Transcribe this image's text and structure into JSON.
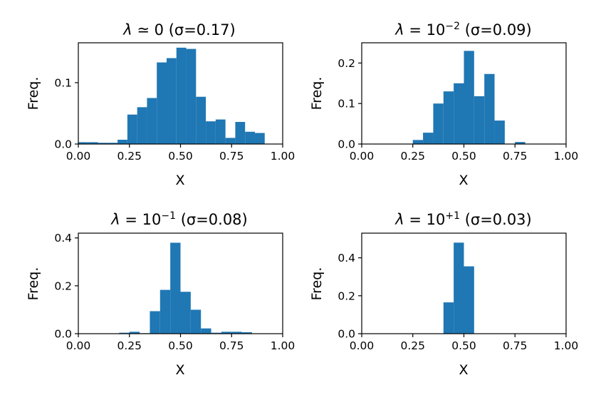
{
  "colors": {
    "bar": "#1f77b4"
  },
  "chart_data": [
    {
      "type": "bar",
      "title_parts": {
        "lambda": "λ",
        "relation": "≃ 0",
        "sigma": "(σ=0.17)"
      },
      "xlabel": "X",
      "ylabel": "Freq.",
      "xlim": [
        0,
        1
      ],
      "ylim": [
        0,
        0.165
      ],
      "xticks": [
        "0.00",
        "0.25",
        "0.50",
        "0.75",
        "1.00"
      ],
      "xtick_values": [
        0,
        0.25,
        0.5,
        0.75,
        1.0
      ],
      "yticks": [
        "0.0",
        "0.1"
      ],
      "ytick_values": [
        0,
        0.1
      ],
      "bin_edges": [
        0.0,
        0.048,
        0.096,
        0.144,
        0.192,
        0.24,
        0.288,
        0.336,
        0.384,
        0.432,
        0.48,
        0.528,
        0.576,
        0.624,
        0.672,
        0.72,
        0.768,
        0.816,
        0.864,
        0.912,
        0.96
      ],
      "values": [
        0.003,
        0.003,
        0.002,
        0.002,
        0.007,
        0.048,
        0.06,
        0.075,
        0.133,
        0.14,
        0.157,
        0.155,
        0.077,
        0.037,
        0.04,
        0.01,
        0.036,
        0.02,
        0.018,
        0.0
      ]
    },
    {
      "type": "bar",
      "title_parts": {
        "lambda": "λ",
        "relation": "= 10",
        "exponent": "−2",
        "sigma": "(σ=0.09)"
      },
      "xlabel": "X",
      "ylabel": "Freq.",
      "xlim": [
        0,
        1
      ],
      "ylim": [
        0,
        0.25
      ],
      "xticks": [
        "0.00",
        "0.25",
        "0.50",
        "0.75",
        "1.00"
      ],
      "xtick_values": [
        0,
        0.25,
        0.5,
        0.75,
        1.0
      ],
      "yticks": [
        "0.0",
        "0.1",
        "0.2"
      ],
      "ytick_values": [
        0,
        0.1,
        0.2
      ],
      "bin_edges": [
        0.25,
        0.3,
        0.35,
        0.4,
        0.45,
        0.5,
        0.55,
        0.6,
        0.65,
        0.7,
        0.75,
        0.8
      ],
      "values": [
        0.01,
        0.028,
        0.1,
        0.13,
        0.15,
        0.23,
        0.118,
        0.173,
        0.058,
        0.0,
        0.005
      ]
    },
    {
      "type": "bar",
      "title_parts": {
        "lambda": "λ",
        "relation": "= 10",
        "exponent": "−1",
        "sigma": "(σ=0.08)"
      },
      "xlabel": "X",
      "ylabel": "Freq.",
      "xlim": [
        0,
        1
      ],
      "ylim": [
        0,
        0.42
      ],
      "xticks": [
        "0.00",
        "0.25",
        "0.50",
        "0.75",
        "1.00"
      ],
      "xtick_values": [
        0,
        0.25,
        0.5,
        0.75,
        1.0
      ],
      "yticks": [
        "0.0",
        "0.2",
        "0.4"
      ],
      "ytick_values": [
        0,
        0.2,
        0.4
      ],
      "bin_edges": [
        0.2,
        0.25,
        0.3,
        0.35,
        0.4,
        0.45,
        0.5,
        0.55,
        0.6,
        0.65,
        0.7,
        0.75,
        0.8,
        0.85
      ],
      "values": [
        0.004,
        0.008,
        0.002,
        0.094,
        0.183,
        0.38,
        0.175,
        0.1,
        0.022,
        0.004,
        0.008,
        0.008,
        0.006
      ]
    },
    {
      "type": "bar",
      "title_parts": {
        "lambda": "λ",
        "relation": "= 10",
        "exponent": "+1",
        "sigma": "(σ=0.03)"
      },
      "xlabel": "X",
      "ylabel": "Freq.",
      "xlim": [
        0,
        1
      ],
      "ylim": [
        0,
        0.53
      ],
      "xticks": [
        "0.00",
        "0.25",
        "0.50",
        "0.75",
        "1.00"
      ],
      "xtick_values": [
        0,
        0.25,
        0.5,
        0.75,
        1.0
      ],
      "yticks": [
        "0.0",
        "0.2",
        "0.4"
      ],
      "ytick_values": [
        0,
        0.2,
        0.4
      ],
      "bin_edges": [
        0.4,
        0.45,
        0.5,
        0.55
      ],
      "values": [
        0.165,
        0.48,
        0.355
      ]
    }
  ]
}
